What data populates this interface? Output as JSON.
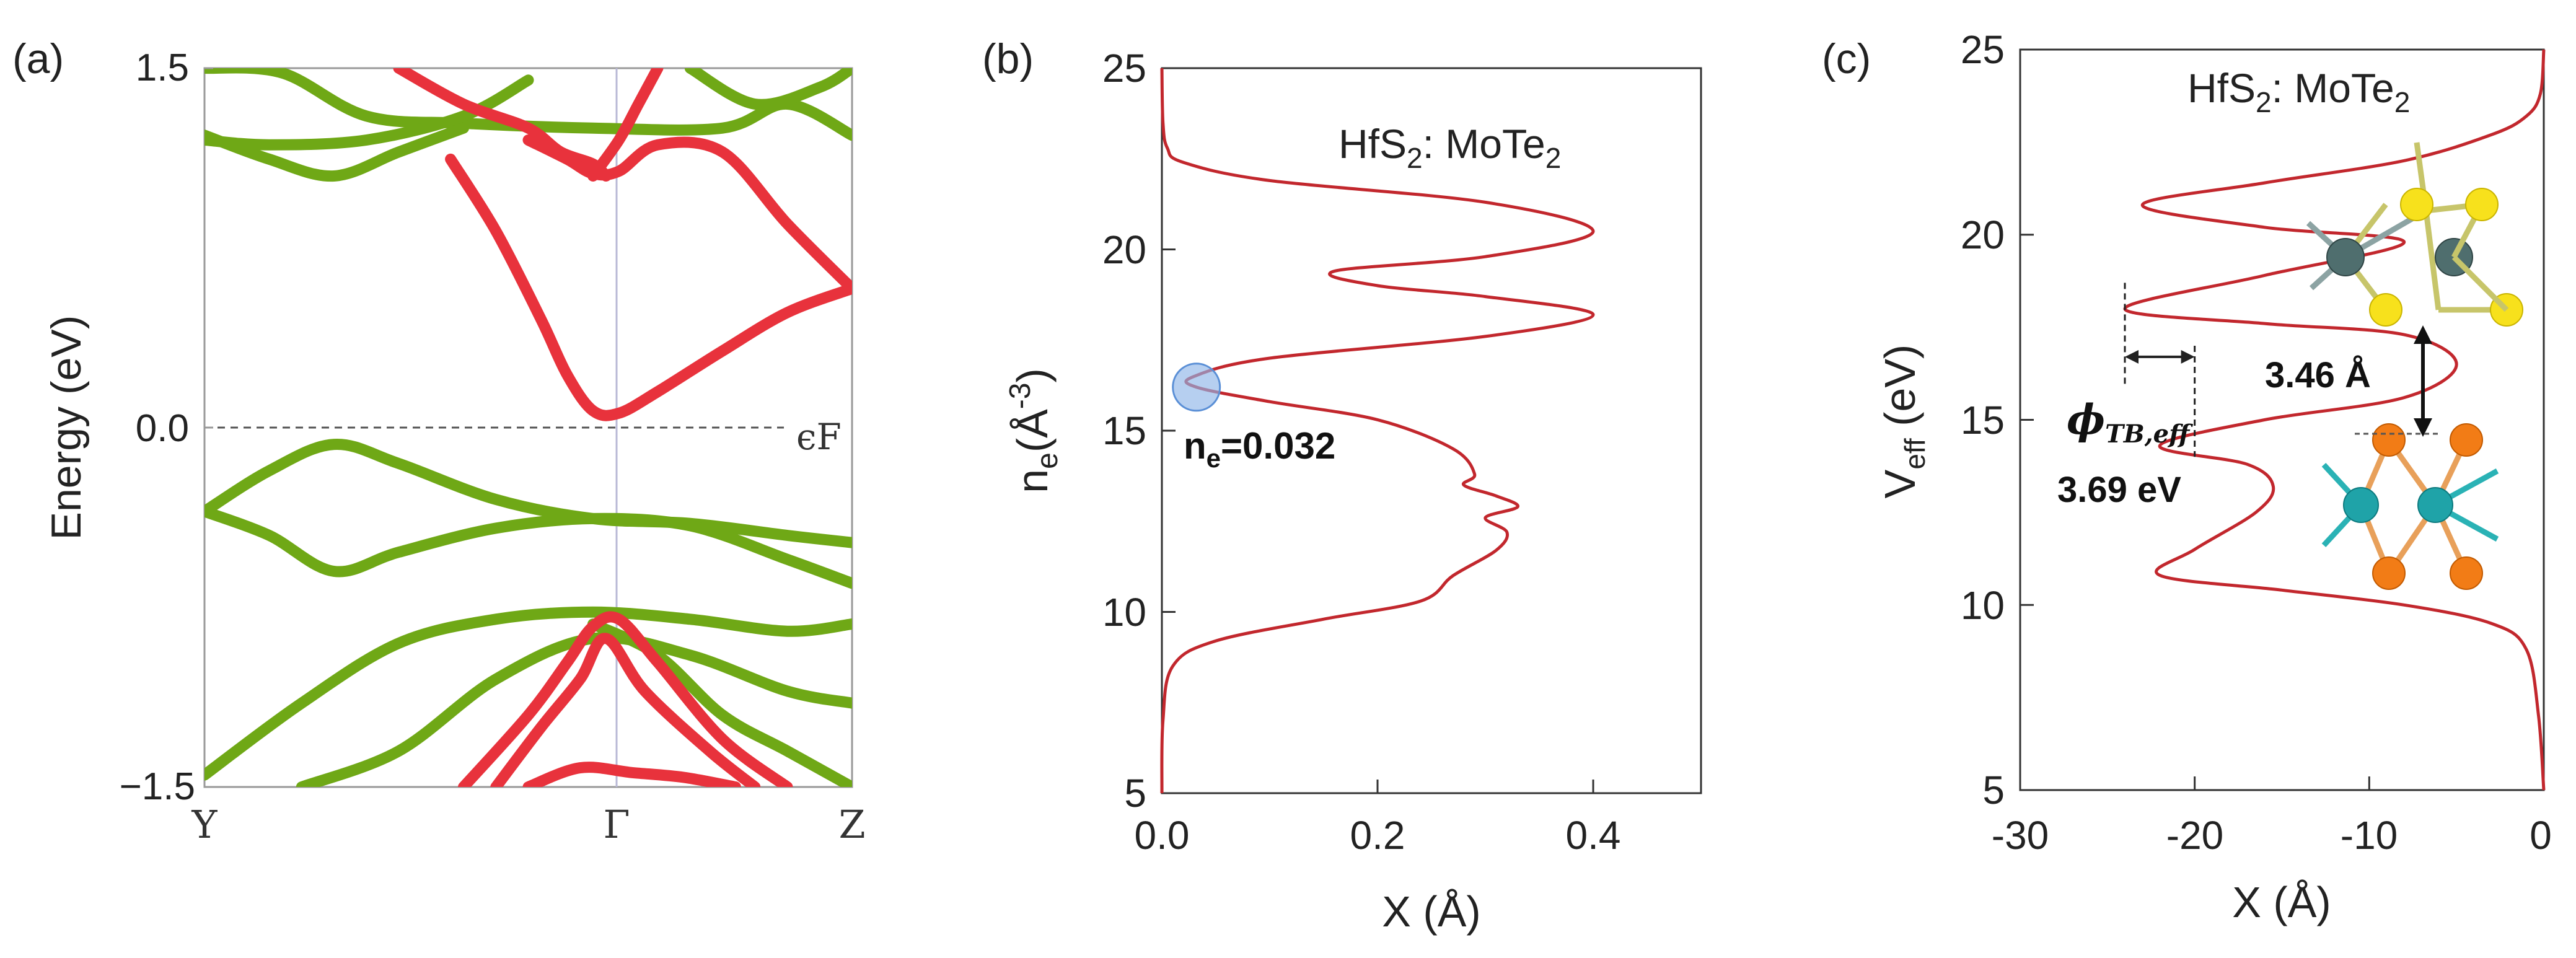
{
  "chart_data": [
    {
      "panel": "(a)",
      "type": "line",
      "title": "",
      "ylabel": "Energy (eV)",
      "xlabel": "",
      "ylim": [
        -1.5,
        1.5
      ],
      "ytick_labels": [
        "1.5",
        "0.0",
        "−1.5"
      ],
      "yticks": [
        1.5,
        0.0,
        -1.5
      ],
      "x_kpoints": [
        "Y",
        "Γ",
        "Z"
      ],
      "fermi_label": "ϵF",
      "fermi_level": 0.0,
      "colors": {
        "red_bands": "#e8323c",
        "green_bands": "#6fa816",
        "gamma_line": "#b9b9d6"
      },
      "series": [
        {
          "name": "red-1",
          "color": "red",
          "x": [
            0.3,
            0.4,
            0.5,
            0.55,
            0.6,
            0.62
          ],
          "y": [
            1.5,
            1.35,
            1.25,
            1.15,
            1.1,
            1.05
          ]
        },
        {
          "name": "red-cb",
          "color": "red",
          "x": [
            0.38,
            0.45,
            0.52,
            0.56,
            0.6,
            0.64,
            0.7,
            0.8,
            0.9,
            1.0
          ],
          "y": [
            1.12,
            0.82,
            0.45,
            0.22,
            0.07,
            0.06,
            0.15,
            0.32,
            0.48,
            0.58
          ]
        },
        {
          "name": "red-2",
          "color": "red",
          "x": [
            0.5,
            0.56,
            0.6,
            0.64,
            0.7,
            0.8,
            0.9,
            1.0
          ],
          "y": [
            1.2,
            1.12,
            1.06,
            1.07,
            1.18,
            1.15,
            0.85,
            0.58
          ]
        },
        {
          "name": "red-3",
          "color": "red",
          "x": [
            0.6,
            0.64,
            0.67,
            0.7
          ],
          "y": [
            1.05,
            1.2,
            1.35,
            1.5
          ]
        },
        {
          "name": "red-vb1",
          "color": "red",
          "x": [
            0.4,
            0.5,
            0.56,
            0.6,
            0.64,
            0.7,
            0.8,
            0.9
          ],
          "y": [
            -1.5,
            -1.2,
            -0.98,
            -0.83,
            -0.8,
            -0.98,
            -1.3,
            -1.5
          ]
        },
        {
          "name": "red-vb2",
          "color": "red",
          "x": [
            0.45,
            0.52,
            0.58,
            0.62,
            0.68,
            0.78,
            0.85
          ],
          "y": [
            -1.5,
            -1.25,
            -1.05,
            -0.88,
            -1.1,
            -1.35,
            -1.5
          ]
        },
        {
          "name": "red-vb3",
          "color": "red",
          "x": [
            0.5,
            0.58,
            0.66,
            0.74,
            0.82
          ],
          "y": [
            -1.5,
            -1.42,
            -1.44,
            -1.46,
            -1.5
          ]
        },
        {
          "name": "green-1",
          "color": "green",
          "x": [
            0.0,
            0.12,
            0.25,
            0.4,
            0.6,
            0.8,
            0.9,
            1.0
          ],
          "y": [
            1.5,
            1.48,
            1.3,
            1.27,
            1.25,
            1.25,
            1.35,
            1.22
          ]
        },
        {
          "name": "green-2",
          "color": "green",
          "x": [
            0.0,
            0.1,
            0.2,
            0.3,
            0.4
          ],
          "y": [
            1.22,
            1.12,
            1.05,
            1.15,
            1.25
          ]
        },
        {
          "name": "green-3",
          "color": "green",
          "x": [
            0.0,
            0.1,
            0.25,
            0.4,
            0.5
          ],
          "y": [
            1.2,
            1.18,
            1.2,
            1.3,
            1.45
          ]
        },
        {
          "name": "green-4",
          "color": "green",
          "x": [
            0.75,
            0.85,
            0.95,
            1.0
          ],
          "y": [
            1.5,
            1.35,
            1.42,
            1.5
          ]
        },
        {
          "name": "green-vb1",
          "color": "green",
          "x": [
            0.0,
            0.1,
            0.2,
            0.3,
            0.45,
            0.6,
            0.75,
            0.9,
            1.0
          ],
          "y": [
            -0.35,
            -0.18,
            -0.07,
            -0.15,
            -0.3,
            -0.38,
            -0.4,
            -0.45,
            -0.48
          ]
        },
        {
          "name": "green-vb2",
          "color": "green",
          "x": [
            0.0,
            0.1,
            0.2,
            0.3,
            0.45,
            0.6,
            0.75,
            0.9,
            1.0
          ],
          "y": [
            -0.35,
            -0.45,
            -0.6,
            -0.52,
            -0.42,
            -0.38,
            -0.41,
            -0.55,
            -0.65
          ]
        },
        {
          "name": "green-vb3",
          "color": "green",
          "x": [
            0.0,
            0.15,
            0.3,
            0.45,
            0.6,
            0.75,
            0.9,
            1.0
          ],
          "y": [
            -1.45,
            -1.15,
            -0.9,
            -0.8,
            -0.77,
            -0.8,
            -0.85,
            -0.82
          ]
        },
        {
          "name": "green-vb4",
          "color": "green",
          "x": [
            0.15,
            0.3,
            0.45,
            0.6,
            0.75,
            0.9,
            1.0
          ],
          "y": [
            -1.5,
            -1.35,
            -1.05,
            -0.88,
            -0.95,
            -1.1,
            -1.15
          ]
        },
        {
          "name": "green-vb5",
          "color": "green",
          "x": [
            0.6,
            0.7,
            0.8,
            0.9,
            1.0
          ],
          "y": [
            -0.82,
            -0.95,
            -1.2,
            -1.35,
            -1.5
          ]
        }
      ]
    },
    {
      "panel": "(b)",
      "type": "line",
      "title": "",
      "legend_text": "HfS2: MoTe2",
      "legend_main": "HfS",
      "legend_sub1": "2",
      "legend_mid": ": MoTe",
      "legend_sub2": "2",
      "xlabel": "X (Å)",
      "ylabel": "ne(Å-3)",
      "ylabel_main": "n",
      "ylabel_sub": "e",
      "ylabel_paren": "(Å",
      "ylabel_sup": "-3",
      "ylabel_close": ")",
      "xlim": [
        0.0,
        0.5
      ],
      "ylim": [
        5,
        25
      ],
      "xticks": [
        0.0,
        0.2,
        0.4
      ],
      "xtick_labels": [
        "0.0",
        "0.2",
        "0.4"
      ],
      "yticks": [
        5,
        10,
        15,
        20,
        25
      ],
      "ytick_labels": [
        "5",
        "10",
        "15",
        "20",
        "25"
      ],
      "annotation": "ne=0.032",
      "annotation_main": "n",
      "annotation_sub": "e",
      "annotation_value": "=0.032",
      "marker_point": {
        "x": 0.032,
        "y": 16.2
      },
      "series": [
        {
          "name": "density",
          "color": "#c2272d",
          "x": [
            0.0,
            0.001,
            0.005,
            0.02,
            0.1,
            0.3,
            0.4,
            0.3,
            0.16,
            0.2,
            0.3,
            0.4,
            0.3,
            0.1,
            0.03,
            0.032,
            0.1,
            0.2,
            0.27,
            0.29,
            0.28,
            0.31,
            0.33,
            0.3,
            0.32,
            0.31,
            0.27,
            0.24,
            0.15,
            0.05,
            0.01,
            0.001,
            0.0
          ],
          "y": [
            25.0,
            23.5,
            22.8,
            22.4,
            21.9,
            21.3,
            20.5,
            19.8,
            19.4,
            19.0,
            18.7,
            18.2,
            17.6,
            17.0,
            16.5,
            16.2,
            15.8,
            15.3,
            14.5,
            13.8,
            13.5,
            13.2,
            12.9,
            12.6,
            12.2,
            11.7,
            11.0,
            10.3,
            9.8,
            9.2,
            8.5,
            7.0,
            5.0
          ]
        }
      ]
    },
    {
      "panel": "(c)",
      "type": "line",
      "title": "",
      "legend_text": "HfS2: MoTe2",
      "legend_main": "HfS",
      "legend_sub1": "2",
      "legend_mid": ": MoTe",
      "legend_sub2": "2",
      "xlabel": "X (Å)",
      "ylabel": "Veff (eV)",
      "ylabel_main": "V",
      "ylabel_sub": "eff",
      "ylabel_rest": " (eV)",
      "xlim": [
        -30,
        0
      ],
      "ylim": [
        5,
        25
      ],
      "xticks": [
        -30,
        -20,
        -10,
        0
      ],
      "xtick_labels": [
        "-30",
        "-20",
        "-10",
        "0"
      ],
      "yticks": [
        5,
        10,
        15,
        20,
        25
      ],
      "ytick_labels": [
        "5",
        "10",
        "15",
        "20",
        "25"
      ],
      "annotation_distance": "3.46 Å",
      "annotation_phi_symbol": "ϕ",
      "annotation_phi_sub": "TB,eff",
      "annotation_phi_value": "3.69 eV",
      "marker_dashes": {
        "x_left": -24,
        "x_right": -20,
        "y_level": 16.7
      },
      "series": [
        {
          "name": "potential",
          "color": "#c2272d",
          "x": [
            0.0,
            -0.2,
            -1.0,
            -3.0,
            -8.0,
            -16.0,
            -23.0,
            -16.0,
            -8.0,
            -16.0,
            -24.0,
            -16.0,
            -8.0,
            -5.0,
            -8.0,
            -16.0,
            -22.0,
            -17.0,
            -15.5,
            -16.5,
            -20.0,
            -22.0,
            -15.0,
            -8.0,
            -3.0,
            -1.0,
            -0.3,
            0.0
          ],
          "y": [
            25.0,
            23.8,
            23.2,
            22.7,
            22.0,
            21.4,
            20.8,
            20.2,
            19.8,
            18.9,
            18.0,
            17.6,
            17.3,
            16.5,
            15.6,
            15.0,
            14.3,
            13.8,
            13.2,
            12.5,
            11.5,
            10.8,
            10.4,
            10.0,
            9.5,
            8.8,
            7.0,
            5.0
          ]
        }
      ],
      "colors": {
        "Hf": "#4f6e6e",
        "S": "#f7e11c",
        "Mo": "#1fa3a8",
        "Te": "#f27c16",
        "bond": "#8aa"
      }
    }
  ],
  "panel_labels": {
    "a": "(a)",
    "b": "(b)",
    "c": "(c)"
  }
}
